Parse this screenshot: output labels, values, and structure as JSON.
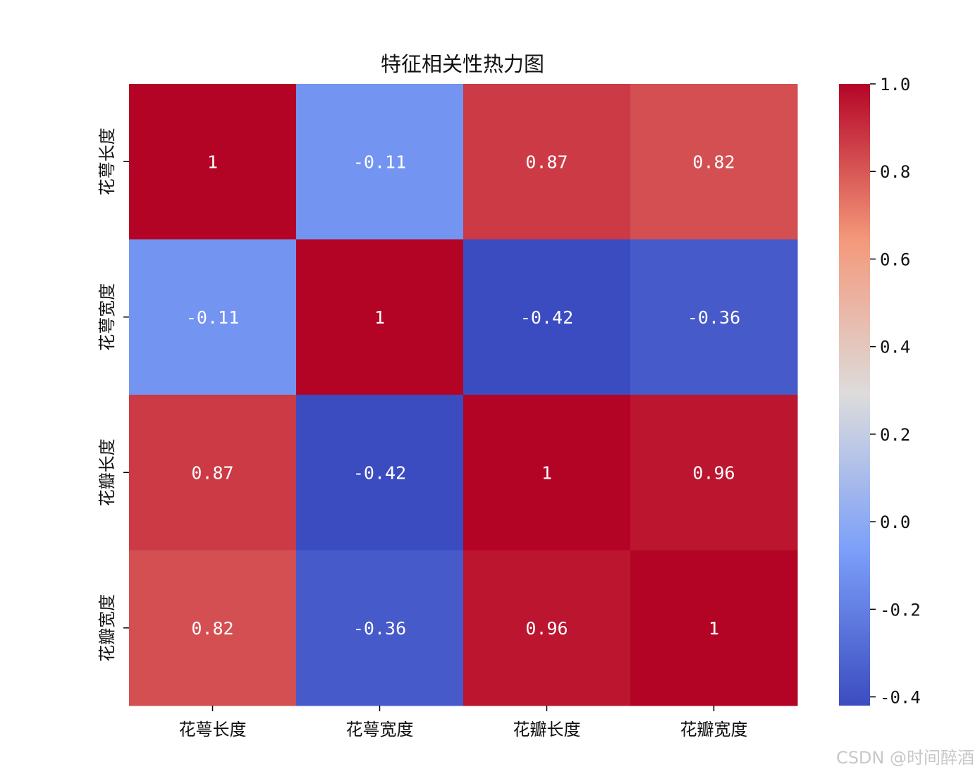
{
  "chart_data": {
    "type": "heatmap",
    "title": "特征相关性热力图",
    "x_labels": [
      "花萼长度",
      "花萼宽度",
      "花瓣长度",
      "花瓣宽度"
    ],
    "y_labels": [
      "花萼长度",
      "花萼宽度",
      "花瓣长度",
      "花瓣宽度"
    ],
    "values": [
      [
        1,
        -0.11,
        0.87,
        0.82
      ],
      [
        -0.11,
        1,
        -0.42,
        -0.36
      ],
      [
        0.87,
        -0.42,
        1,
        0.96
      ],
      [
        0.82,
        -0.36,
        0.96,
        1
      ]
    ],
    "annotations": [
      [
        "1",
        "-0.11",
        "0.87",
        "0.82"
      ],
      [
        "-0.11",
        "1",
        "-0.42",
        "-0.36"
      ],
      [
        "0.87",
        "-0.42",
        "1",
        "0.96"
      ],
      [
        "0.82",
        "-0.36",
        "0.96",
        "1"
      ]
    ],
    "colormap": "coolwarm",
    "colorbar": {
      "range": [
        -0.42,
        1.0
      ],
      "ticks": [
        1.0,
        0.8,
        0.6,
        0.4,
        0.2,
        0.0,
        -0.2,
        -0.4
      ],
      "tick_labels": [
        "1.0",
        "0.8",
        "0.6",
        "0.4",
        "0.2",
        "0.0",
        "-0.2",
        "-0.4"
      ]
    }
  },
  "watermark": "CSDN @时间醉酒"
}
